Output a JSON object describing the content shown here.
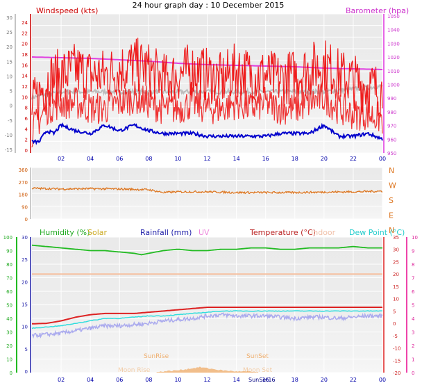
{
  "page_title": "24 hour graph day : 10 December 2015",
  "chart_data": [
    {
      "id": "wind_baro",
      "type": "line",
      "labels": {
        "windspeed": "Windspeed (kts)",
        "barometer": "Barometer (hpa)"
      },
      "x_ticks": [
        "02",
        "04",
        "06",
        "08",
        "10",
        "12",
        "14",
        "16",
        "18",
        "20",
        "22",
        "00"
      ],
      "left_outer_ticks": [
        "30",
        "25",
        "20",
        "15",
        "10",
        "5",
        "0",
        "-5",
        "-10",
        "-15"
      ],
      "left_inner_ticks": [
        "24",
        "22",
        "20",
        "18",
        "16",
        "14",
        "12",
        "10",
        "8",
        "6",
        "4",
        "2",
        "0"
      ],
      "right_ticks": [
        "1050",
        "1040",
        "1030",
        "1020",
        "1010",
        "1000",
        "990",
        "980",
        "970",
        "960",
        "950"
      ],
      "xlim_hours": [
        0,
        24
      ],
      "wind_ylim_kts": [
        0,
        25
      ],
      "baro_ylim_hpa": [
        950,
        1050
      ],
      "series": [
        {
          "key": "barometer",
          "color": "#e040e0",
          "unit": "hpa",
          "x": [
            0,
            2,
            4,
            6,
            8,
            10,
            12,
            14,
            16,
            18,
            20,
            22,
            24
          ],
          "y": [
            1019,
            1018.5,
            1018,
            1017,
            1016,
            1014.5,
            1013.5,
            1013,
            1012.5,
            1012,
            1011,
            1010.5,
            1010
          ]
        },
        {
          "key": "gust",
          "color": "#ee1111",
          "unit": "kts",
          "x": [
            0,
            1,
            2,
            3,
            4,
            5,
            6,
            7,
            8,
            9,
            10,
            11,
            12,
            13,
            14,
            15,
            16,
            17,
            18,
            19,
            20,
            21,
            22,
            23,
            24
          ],
          "y": [
            8,
            13,
            14,
            15,
            14,
            14,
            15,
            16,
            15,
            13,
            14,
            15,
            14,
            13,
            15,
            14,
            14,
            13,
            14,
            15,
            16,
            14,
            13,
            12,
            11
          ]
        },
        {
          "key": "average",
          "color": "#ee1111",
          "unit": "kts",
          "x": [
            0,
            1,
            2,
            3,
            4,
            5,
            6,
            7,
            8,
            9,
            10,
            11,
            12,
            13,
            14,
            15,
            16,
            17,
            18,
            19,
            20,
            21,
            22,
            23,
            24
          ],
          "y": [
            4,
            8,
            9,
            9,
            8,
            8,
            9,
            10,
            9,
            8,
            8,
            9,
            8,
            8,
            9,
            8,
            9,
            8,
            8,
            9,
            10,
            8,
            7,
            7,
            6
          ]
        },
        {
          "key": "grey_line",
          "color": "#b8b8b8",
          "unit": "kts",
          "x": [
            0,
            2,
            4,
            6,
            8,
            10,
            12,
            14,
            16,
            18,
            20,
            22,
            24
          ],
          "y": [
            10,
            11,
            11,
            11,
            11,
            11,
            11,
            11,
            11,
            11,
            11,
            11.5,
            12
          ]
        },
        {
          "key": "blue_line",
          "color": "#0000cc",
          "unit": "kts",
          "x": [
            0,
            0.5,
            1,
            1.5,
            2,
            3,
            4,
            5,
            6,
            7,
            8,
            9,
            10,
            11,
            12,
            13,
            14,
            15,
            16,
            17,
            18,
            19,
            20,
            21,
            22,
            23,
            24
          ],
          "y": [
            2,
            2,
            4,
            3.5,
            5,
            4,
            3.5,
            5,
            4,
            5,
            4,
            3.5,
            3.5,
            3.5,
            3,
            3,
            3,
            3,
            3,
            3.5,
            3.5,
            3.5,
            5,
            3,
            3,
            3.5,
            2.5
          ]
        }
      ]
    },
    {
      "id": "wind_direction",
      "type": "line",
      "left_ticks": [
        "360",
        "270",
        "180",
        "90",
        "0"
      ],
      "right_labels": [
        "N",
        "W",
        "S",
        "E",
        "N"
      ],
      "ylim_deg": [
        0,
        360
      ],
      "series": [
        {
          "key": "direction",
          "color": "#dd7722",
          "x": [
            0,
            2,
            4,
            6,
            8,
            9,
            10,
            12,
            14,
            16,
            18,
            20,
            22,
            24
          ],
          "y": [
            215,
            210,
            212,
            210,
            205,
            185,
            190,
            190,
            185,
            185,
            185,
            188,
            190,
            195
          ]
        }
      ]
    },
    {
      "id": "temp_hum",
      "type": "line",
      "labels": {
        "humidity": "Humidity (%)",
        "solar": "Solar",
        "rainfall": "Rainfall (mm)",
        "uv": "UV",
        "temperature": "Temperature (°C)",
        "indoor": "Indoor",
        "dewpoint": "Dew Point (°C)"
      },
      "annotations": [
        "SunRise",
        "SunSet",
        "Moon Rise",
        "Moon Set",
        "SunSet16"
      ],
      "x_ticks": [
        "02",
        "04",
        "06",
        "08",
        "10",
        "12",
        "14",
        "16",
        "18",
        "20",
        "22",
        "00"
      ],
      "humidity_ticks": [
        "100",
        "90",
        "80",
        "70",
        "60",
        "50",
        "40",
        "30",
        "20",
        "10",
        "0"
      ],
      "rain_ticks": [
        "30",
        "25",
        "20",
        "15",
        "10",
        "5",
        "0"
      ],
      "temp_ticks": [
        "35",
        "30",
        "25",
        "20",
        "15",
        "10",
        "5",
        "0",
        "-5",
        "-10",
        "-15",
        "-20"
      ],
      "uv_ticks": [
        "10",
        "9",
        "8",
        "7",
        "6",
        "5",
        "4",
        "3",
        "2",
        "1",
        "0"
      ],
      "humidity_ylim": [
        0,
        100
      ],
      "temp_ylim_c": [
        -20,
        35
      ],
      "series": [
        {
          "key": "humidity",
          "color": "#22bb22",
          "unit": "%",
          "x": [
            0,
            1,
            2,
            3,
            4,
            5,
            6,
            7,
            7.5,
            8,
            9,
            10,
            11,
            12,
            13,
            14,
            15,
            16,
            17,
            18,
            19,
            20,
            21,
            22,
            23,
            24
          ],
          "y": [
            94,
            93,
            92,
            91,
            90,
            90,
            89,
            88,
            87,
            88,
            90,
            91,
            90,
            90,
            91,
            91,
            92,
            92,
            91,
            91,
            92,
            92,
            92,
            93,
            92,
            92
          ]
        },
        {
          "key": "indoor",
          "color": "#f5c0a0",
          "unit": "°C",
          "x": [
            0,
            24
          ],
          "y": [
            20,
            20
          ]
        },
        {
          "key": "temperature",
          "color": "#dd2222",
          "unit": "°C",
          "x": [
            0,
            1,
            2,
            3,
            4,
            5,
            6,
            7,
            8,
            9,
            10,
            11,
            12,
            13,
            14,
            15,
            16,
            17,
            18,
            19,
            20,
            21,
            22,
            23,
            24
          ],
          "y": [
            -0.2,
            0,
            1,
            2.5,
            3.5,
            4,
            4,
            4,
            4.5,
            5,
            5.5,
            6,
            6.5,
            6.5,
            6.5,
            6.5,
            6.5,
            6.5,
            6.5,
            6.5,
            6.5,
            6.5,
            6.5,
            6.5,
            6.5
          ]
        },
        {
          "key": "dewpoint",
          "color": "#33dddd",
          "unit": "°C",
          "x": [
            0,
            1,
            2,
            3,
            4,
            5,
            6,
            7,
            8,
            9,
            10,
            11,
            12,
            13,
            14,
            15,
            16,
            17,
            18,
            19,
            20,
            21,
            22,
            23,
            24
          ],
          "y": [
            -2,
            -1.5,
            -1,
            0,
            1,
            2,
            2,
            2.5,
            3,
            3,
            3.5,
            4,
            4.5,
            5,
            5,
            5,
            5,
            5,
            5,
            5,
            5,
            5,
            5,
            5,
            5
          ]
        },
        {
          "key": "lavender",
          "color": "#aaaaee",
          "unit": "°C",
          "x": [
            0,
            1,
            2,
            3,
            4,
            5,
            6,
            7,
            8,
            9,
            10,
            11,
            12,
            13,
            14,
            15,
            16,
            17,
            18,
            19,
            20,
            21,
            22,
            23,
            24
          ],
          "y": [
            -5,
            -4.5,
            -4,
            -3,
            -2,
            -1,
            -1,
            -0.5,
            0,
            1,
            1.5,
            2,
            3,
            3.5,
            3,
            3,
            3,
            2.5,
            2,
            2.5,
            2.5,
            2,
            2.5,
            3,
            3
          ]
        },
        {
          "key": "solar",
          "color": "#ee9944",
          "unit": "",
          "x": [
            8.5,
            9,
            10,
            11,
            11.5,
            12,
            13,
            14,
            15,
            15.5
          ],
          "y": [
            0,
            0.5,
            1,
            2,
            2.5,
            2,
            1,
            0.5,
            0.3,
            0
          ]
        }
      ]
    }
  ]
}
